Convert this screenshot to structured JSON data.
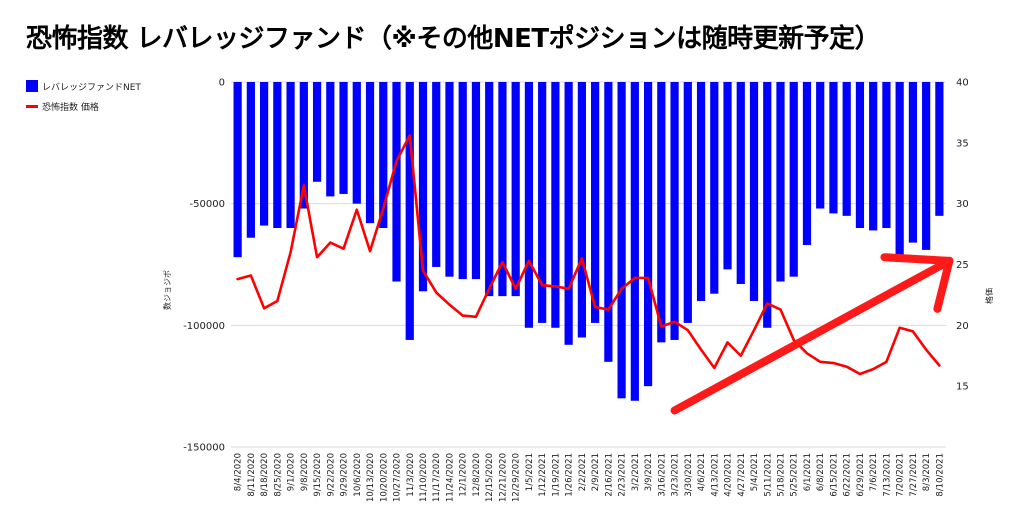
{
  "title": "恐怖指数 レバレッジファンド（※その他NETポジションは随時更新予定）",
  "legend": {
    "bar_label": "レバレッジファンドNET",
    "line_label": "恐怖指数 価格"
  },
  "colors": {
    "bar": "#0000ff",
    "line": "#ff0000",
    "arrow": "#ff1a1a",
    "grid": "#d9d9d9"
  },
  "chart_data": {
    "type": "bar+line",
    "title": "恐怖指数 レバレッジファンド（※その他NETポジションは随時更新予定）",
    "ylabel_left": "数ジョジボ",
    "ylabel_right": "格価",
    "ylim_left": [
      -150000,
      0
    ],
    "ylim_right": [
      10,
      40
    ],
    "yticks_left": [
      0,
      -50000,
      -100000,
      -150000
    ],
    "yticks_right": [
      40,
      35,
      30,
      25,
      20,
      15
    ],
    "ytick_labels_left": [
      "0",
      "-50000",
      "-100000",
      "-150000"
    ],
    "ytick_labels_right": [
      "40",
      "35",
      "30",
      "25",
      "20",
      "15"
    ],
    "categories": [
      "8/4/2020",
      "8/11/2020",
      "8/18/2020",
      "8/25/2020",
      "9/1/2020",
      "9/8/2020",
      "9/15/2020",
      "9/22/2020",
      "9/29/2020",
      "10/6/2020",
      "10/13/2020",
      "10/20/2020",
      "10/27/2020",
      "11/3/2020",
      "11/10/2020",
      "11/17/2020",
      "11/24/2020",
      "12/1/2020",
      "12/8/2020",
      "12/15/2020",
      "12/21/2020",
      "12/29/2020",
      "1/5/2021",
      "1/12/2021",
      "1/19/2021",
      "1/26/2021",
      "2/2/2021",
      "2/9/2021",
      "2/16/2021",
      "2/23/2021",
      "3/2/2021",
      "3/9/2021",
      "3/16/2021",
      "3/23/2021",
      "3/30/2021",
      "4/6/2021",
      "4/13/2021",
      "4/20/2021",
      "4/27/2021",
      "5/4/2021",
      "5/11/2021",
      "5/18/2021",
      "5/25/2021",
      "6/1/2021",
      "6/8/2021",
      "6/15/2021",
      "6/22/2021",
      "6/29/2021",
      "7/6/2021",
      "7/13/2021",
      "7/20/2021",
      "7/27/2021",
      "8/3/2021",
      "8/10/2021"
    ],
    "series": [
      {
        "name": "レバレッジファンドNET",
        "type": "bar",
        "axis": "left",
        "values": [
          -72000,
          -64000,
          -59000,
          -60000,
          -60000,
          -52000,
          -41000,
          -47000,
          -46000,
          -50000,
          -58000,
          -60000,
          -82000,
          -106000,
          -86000,
          -76000,
          -80000,
          -81000,
          -81000,
          -88000,
          -88000,
          -88000,
          -101000,
          -99000,
          -101000,
          -108000,
          -105000,
          -99000,
          -115000,
          -130000,
          -131000,
          -125000,
          -107000,
          -106000,
          -99000,
          -90000,
          -87000,
          -77000,
          -83000,
          -90000,
          -101000,
          -82000,
          -80000,
          -67000,
          -52000,
          -54000,
          -55000,
          -60000,
          -61000,
          -60000,
          -74000,
          -66000,
          -69000,
          -55000
        ]
      },
      {
        "name": "恐怖指数 価格",
        "type": "line",
        "axis": "right",
        "values": [
          23.8,
          24.1,
          21.4,
          22.0,
          26.0,
          31.5,
          25.6,
          26.8,
          26.3,
          29.5,
          26.1,
          29.6,
          33.5,
          35.6,
          24.5,
          22.7,
          21.7,
          20.8,
          20.7,
          23.0,
          25.2,
          23.0,
          25.3,
          23.3,
          23.2,
          23.0,
          25.5,
          21.5,
          21.3,
          23.0,
          23.9,
          23.9,
          19.9,
          20.3,
          19.6,
          18.0,
          16.5,
          18.6,
          17.5,
          19.6,
          21.8,
          21.3,
          18.8,
          17.7,
          17.0,
          16.9,
          16.6,
          16.0,
          16.4,
          17.0,
          19.8,
          19.5,
          18.0,
          16.7
        ]
      }
    ],
    "annotations": [
      {
        "type": "arrow",
        "from_category": "3/23/2021",
        "from_value_right": 13.0,
        "to_category": "8/10/2021",
        "to_value_right": 25.3,
        "note": "upward trend arrow"
      },
      {
        "type": "segment",
        "from_category": "7/13/2021",
        "from_value_right": 25.6,
        "to_category": "8/10/2021",
        "to_value_right": 25.3,
        "note": "horizontal arm near 25"
      }
    ]
  }
}
